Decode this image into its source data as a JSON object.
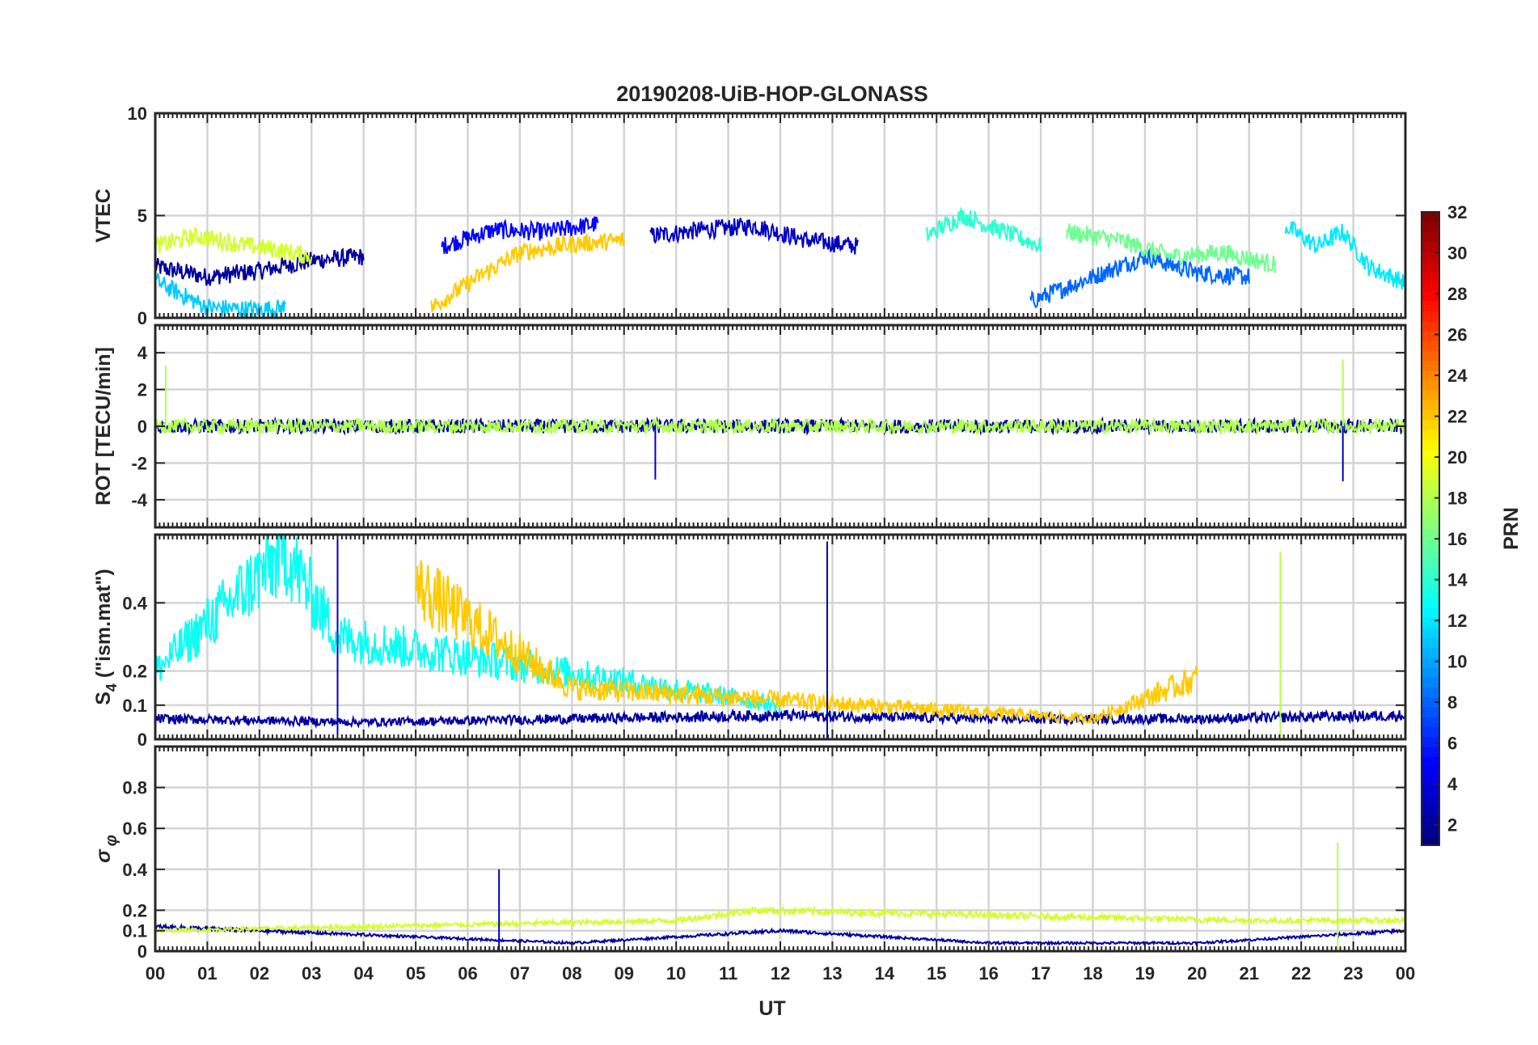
{
  "chart_data": {
    "type": "line",
    "title": "20190208-UiB-HOP-GLONASS",
    "xlabel": "UT",
    "x_tick_labels": [
      "00",
      "01",
      "02",
      "03",
      "04",
      "05",
      "06",
      "07",
      "08",
      "09",
      "10",
      "11",
      "12",
      "13",
      "14",
      "15",
      "16",
      "17",
      "18",
      "19",
      "20",
      "21",
      "22",
      "23",
      "00"
    ],
    "xlim_hours": [
      0,
      24
    ],
    "grid": true,
    "colorbar": {
      "label": "PRN",
      "range": [
        1,
        32
      ],
      "tick_labels": [
        "2",
        "4",
        "6",
        "8",
        "10",
        "12",
        "14",
        "16",
        "18",
        "20",
        "22",
        "24",
        "26",
        "28",
        "30",
        "32"
      ],
      "tick_values": [
        2,
        4,
        6,
        8,
        10,
        12,
        14,
        16,
        18,
        20,
        22,
        24,
        26,
        28,
        30,
        32
      ],
      "colormap": "jet"
    },
    "panels": [
      {
        "name": "VTEC",
        "ylabel": "VTEC",
        "ylim": [
          0,
          10
        ],
        "ytick_labels": [
          "0",
          "5",
          "10"
        ],
        "ytick_values": [
          0,
          5,
          10
        ],
        "series": [
          {
            "prn": 2,
            "x": [
              0,
              1,
              2,
              3,
              4
            ],
            "y": [
              2.5,
              2.0,
              2.3,
              2.8,
              3.0
            ]
          },
          {
            "prn": 3,
            "x": [
              9.5,
              10.5,
              11.5,
              12.5,
              13.5
            ],
            "y": [
              4.0,
              4.3,
              4.5,
              3.8,
              3.5
            ]
          },
          {
            "prn": 5,
            "x": [
              5.5,
              6.5,
              7.5,
              8.5
            ],
            "y": [
              3.5,
              4.3,
              4.2,
              4.6
            ]
          },
          {
            "prn": 8,
            "x": [
              16.8,
              18,
              19,
              20,
              21
            ],
            "y": [
              0.8,
              2.0,
              3.0,
              2.2,
              2.0
            ]
          },
          {
            "prn": 11,
            "x": [
              0,
              1,
              2,
              2.5
            ],
            "y": [
              1.8,
              0.5,
              0.4,
              0.5
            ]
          },
          {
            "prn": 12,
            "x": [
              21.7,
              22.3,
              22.8,
              23.3,
              24
            ],
            "y": [
              4.5,
              3.5,
              4.2,
              2.5,
              1.7
            ]
          },
          {
            "prn": 14,
            "x": [
              14.8,
              15.5,
              16.3,
              17
            ],
            "y": [
              4.0,
              5.0,
              4.2,
              3.5
            ]
          },
          {
            "prn": 16,
            "x": [
              17.5,
              18.5,
              19.5,
              20.5,
              21.5
            ],
            "y": [
              4.2,
              3.8,
              3.0,
              3.2,
              2.6
            ]
          },
          {
            "prn": 19,
            "x": [
              0,
              0.8,
              1.6,
              2.4,
              3
            ],
            "y": [
              3.5,
              4.0,
              3.6,
              3.3,
              3.0
            ]
          },
          {
            "prn": 22,
            "x": [
              5.3,
              6.2,
              7,
              8,
              9
            ],
            "y": [
              0.5,
              2.0,
              3.2,
              3.6,
              3.8
            ]
          }
        ]
      },
      {
        "name": "ROT",
        "ylabel": "ROT [TECU/min]",
        "ylim": [
          -5.5,
          5.5
        ],
        "ytick_labels": [
          "-4",
          "-2",
          "0",
          "2",
          "4"
        ],
        "ytick_values": [
          -4,
          -2,
          0,
          2,
          4
        ],
        "series": [
          {
            "prn": 2,
            "x": [
              0,
              4,
              8,
              12,
              16,
              20,
              21.5,
              22.8,
              24
            ],
            "y": [
              0,
              0,
              0,
              0,
              0,
              0,
              0,
              0,
              0
            ]
          },
          {
            "prn": 18,
            "x": [
              0,
              4,
              8,
              12,
              16,
              20,
              21.5,
              24
            ],
            "y": [
              0,
              0,
              0,
              0,
              0,
              0,
              0,
              0
            ]
          }
        ],
        "notable_values": [
          {
            "x": 9.6,
            "y": -2.9
          },
          {
            "x": 22.8,
            "y": 3.6
          },
          {
            "x": 22.8,
            "y": -3.0
          },
          {
            "x": 0.2,
            "y": 3.3
          }
        ]
      },
      {
        "name": "S4",
        "ylabel": "S4 (\"ism.mat\")",
        "ylim": [
          0,
          0.6
        ],
        "ytick_labels": [
          "0",
          "0.1",
          "0.2",
          "0.4"
        ],
        "ytick_values": [
          0,
          0.1,
          0.2,
          0.4
        ],
        "series": [
          {
            "prn": 2,
            "x": [
              0,
              4,
              8,
              12,
              16,
              20,
              24
            ],
            "y": [
              0.06,
              0.05,
              0.06,
              0.07,
              0.06,
              0.06,
              0.07
            ]
          },
          {
            "prn": 13,
            "x": [
              0,
              2.5,
              3.5,
              12
            ],
            "y": [
              0.2,
              0.55,
              0.3,
              0.1
            ]
          },
          {
            "prn": 22,
            "x": [
              5,
              6.5,
              8,
              18,
              20
            ],
            "y": [
              0.45,
              0.3,
              0.15,
              0.06,
              0.18
            ]
          }
        ],
        "notable_values": [
          {
            "x": 12.9,
            "y": 0.58
          },
          {
            "x": 21.6,
            "y": 0.55
          },
          {
            "x": 3.5,
            "y": 0.6
          }
        ]
      },
      {
        "name": "sigma_phi",
        "ylabel": "σφ",
        "ylim": [
          0,
          1
        ],
        "ytick_labels": [
          "0",
          "0.1",
          "0.2",
          "0.4",
          "0.6",
          "0.8"
        ],
        "ytick_values": [
          0,
          0.1,
          0.2,
          0.4,
          0.6,
          0.8
        ],
        "series": [
          {
            "prn": 2,
            "x": [
              0,
              4,
              8,
              12,
              16,
              20,
              24
            ],
            "y": [
              0.12,
              0.08,
              0.04,
              0.1,
              0.04,
              0.04,
              0.1
            ]
          },
          {
            "prn": 19,
            "x": [
              0,
              10,
              11.5,
              21,
              24
            ],
            "y": [
              0.1,
              0.15,
              0.2,
              0.15,
              0.15
            ]
          }
        ],
        "notable_values": [
          {
            "x": 6.6,
            "y": 0.4
          },
          {
            "x": 22.7,
            "y": 0.53
          }
        ]
      }
    ]
  }
}
